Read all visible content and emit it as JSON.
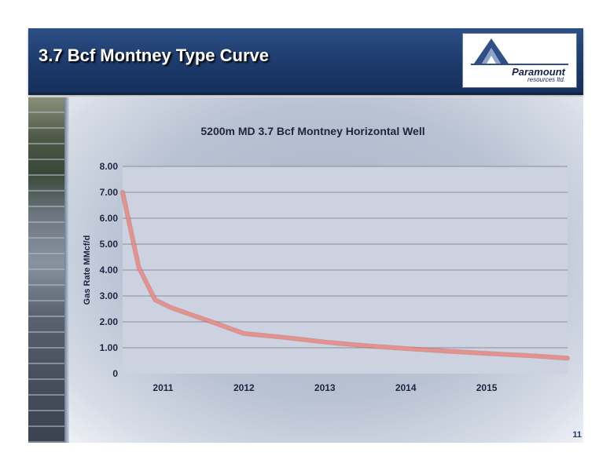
{
  "slide": {
    "title": "3.7 Bcf Montney Type Curve",
    "page_number": "11"
  },
  "logo": {
    "name": "Paramount",
    "subtitle": "resources ltd."
  },
  "colors": {
    "title_bar": "#1d3a6b",
    "plot_area": "#cdd2e1",
    "series_line": "#e8908a",
    "gridline": "#8c8c96"
  },
  "chart_data": {
    "type": "line",
    "title": "5200m MD 3.7 Bcf Montney Horizontal Well",
    "ylabel": "Gas Rate MMcf/d",
    "xlabel": "",
    "ylim": [
      0,
      8
    ],
    "xlim": [
      2010.5,
      2016.0
    ],
    "yticks": [
      0,
      1,
      2,
      3,
      4,
      5,
      6,
      7,
      8
    ],
    "ytick_labels": [
      "0",
      "1.00",
      "2.00",
      "3.00",
      "4.00",
      "5.00",
      "6.00",
      "7.00",
      "8.00"
    ],
    "xtick_labels": [
      "2011",
      "2012",
      "2013",
      "2014",
      "2015"
    ],
    "grid": true,
    "legend": "none",
    "series": [
      {
        "x": [
          2010.5,
          2010.7,
          2010.9,
          2011.1,
          2011.6,
          2012.0,
          2012.5,
          2013.0,
          2013.5,
          2014.0,
          2014.5,
          2015.0,
          2015.5,
          2016.0
        ],
        "y": [
          7.0,
          4.1,
          2.85,
          2.55,
          2.0,
          1.55,
          1.4,
          1.22,
          1.08,
          0.97,
          0.87,
          0.78,
          0.7,
          0.6
        ]
      }
    ]
  }
}
